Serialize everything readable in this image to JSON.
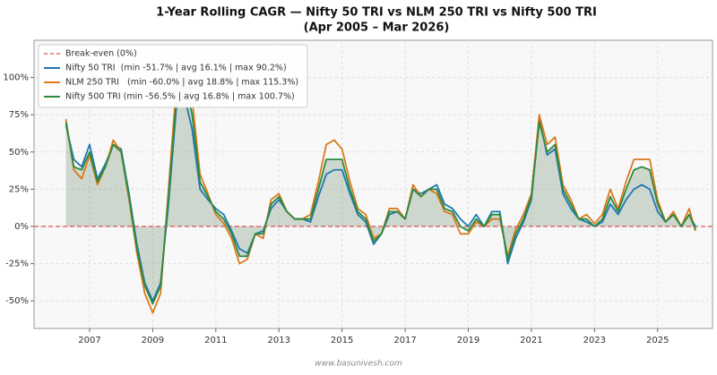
{
  "chart_data": {
    "type": "line",
    "title": "1-Year Rolling CAGR — Nifty 50 TRI vs NLM 250 TRI vs Nifty 500 TRI",
    "subtitle": "(Apr 2005 – Mar 2026)",
    "watermark": "www.basunivesh.com",
    "x": [
      2006.25,
      2006.5,
      2006.75,
      2007,
      2007.25,
      2007.5,
      2007.75,
      2008,
      2008.25,
      2008.5,
      2008.75,
      2009,
      2009.25,
      2009.5,
      2009.75,
      2010,
      2010.25,
      2010.5,
      2010.75,
      2011,
      2011.25,
      2011.5,
      2011.75,
      2012,
      2012.25,
      2012.5,
      2012.75,
      2013,
      2013.25,
      2013.5,
      2013.75,
      2014,
      2014.25,
      2014.5,
      2014.75,
      2015,
      2015.25,
      2015.5,
      2015.75,
      2016,
      2016.25,
      2016.5,
      2016.75,
      2017,
      2017.25,
      2017.5,
      2017.75,
      2018,
      2018.25,
      2018.5,
      2018.75,
      2019,
      2019.25,
      2019.5,
      2019.75,
      2020,
      2020.25,
      2020.5,
      2020.75,
      2021,
      2021.25,
      2021.5,
      2021.75,
      2022,
      2022.25,
      2022.5,
      2022.75,
      2023,
      2023.25,
      2023.5,
      2023.75,
      2024,
      2024.25,
      2024.5,
      2024.75,
      2025,
      2025.25,
      2025.5,
      2025.75,
      2026,
      2026.2
    ],
    "series": [
      {
        "name": "Nifty 50 TRI  (min -51.7% | avg 16.1% | max 90.2%)",
        "color": "#1f77b4",
        "values": [
          68,
          45,
          40,
          55,
          32,
          42,
          55,
          52,
          22,
          -12,
          -38,
          -50,
          -38,
          15,
          80,
          88,
          65,
          25,
          18,
          12,
          8,
          -3,
          -15,
          -18,
          -5,
          -3,
          12,
          18,
          10,
          5,
          5,
          3,
          20,
          35,
          38,
          38,
          22,
          8,
          3,
          -12,
          -5,
          8,
          10,
          5,
          25,
          22,
          25,
          28,
          15,
          12,
          5,
          0,
          8,
          0,
          10,
          10,
          -25,
          -8,
          3,
          18,
          72,
          48,
          52,
          22,
          12,
          5,
          3,
          0,
          3,
          15,
          8,
          18,
          25,
          28,
          25,
          10,
          3,
          8,
          0,
          8,
          0
        ]
      },
      {
        "name": "NLM 250 TRI   (min -60.0% | avg 18.8% | max 115.3%)",
        "color": "#d9791b",
        "values": [
          72,
          38,
          32,
          48,
          28,
          40,
          58,
          50,
          18,
          -18,
          -45,
          -58,
          -45,
          25,
          95,
          110,
          85,
          35,
          22,
          8,
          2,
          -8,
          -25,
          -22,
          -5,
          -8,
          18,
          22,
          10,
          5,
          5,
          8,
          30,
          55,
          58,
          52,
          30,
          12,
          8,
          -8,
          -5,
          12,
          12,
          5,
          28,
          20,
          25,
          22,
          10,
          8,
          -5,
          -5,
          3,
          0,
          5,
          5,
          -20,
          -2,
          8,
          22,
          75,
          55,
          60,
          28,
          18,
          5,
          8,
          2,
          8,
          25,
          12,
          30,
          45,
          45,
          45,
          18,
          3,
          10,
          0,
          12,
          -3
        ]
      },
      {
        "name": "Nifty 500 TRI (min -56.5% | avg 16.8% | max 100.7%)",
        "color": "#2e8b3e",
        "fill": true,
        "values": [
          70,
          40,
          38,
          50,
          30,
          40,
          55,
          50,
          20,
          -15,
          -40,
          -52,
          -40,
          20,
          85,
          100,
          75,
          30,
          20,
          10,
          5,
          -5,
          -20,
          -20,
          -5,
          -5,
          15,
          20,
          10,
          5,
          5,
          5,
          25,
          45,
          45,
          45,
          25,
          10,
          5,
          -10,
          -5,
          10,
          10,
          5,
          25,
          20,
          25,
          25,
          12,
          10,
          0,
          -3,
          5,
          0,
          8,
          8,
          -22,
          -5,
          5,
          20,
          70,
          50,
          55,
          25,
          15,
          5,
          5,
          0,
          5,
          20,
          10,
          25,
          38,
          40,
          38,
          15,
          3,
          8,
          0,
          8,
          -2
        ]
      }
    ],
    "reference_line": {
      "label": "Break-even (0%)",
      "value": 0,
      "color": "#d9534f"
    },
    "xlim": [
      2005.24,
      2026.74
    ],
    "xticks": [
      2007,
      2009,
      2011,
      2013,
      2015,
      2017,
      2019,
      2021,
      2023,
      2025
    ],
    "ylim": [
      -68.5,
      125
    ],
    "yticks": [
      {
        "value": -50,
        "label": "-50%"
      },
      {
        "value": -25,
        "label": "-25%"
      },
      {
        "value": 0,
        "label": "0%"
      },
      {
        "value": 25,
        "label": "25%"
      },
      {
        "value": 50,
        "label": "50%"
      },
      {
        "value": 75,
        "label": "75%"
      },
      {
        "value": 100,
        "label": "100%"
      }
    ],
    "grid": true,
    "legend": "upper left"
  }
}
